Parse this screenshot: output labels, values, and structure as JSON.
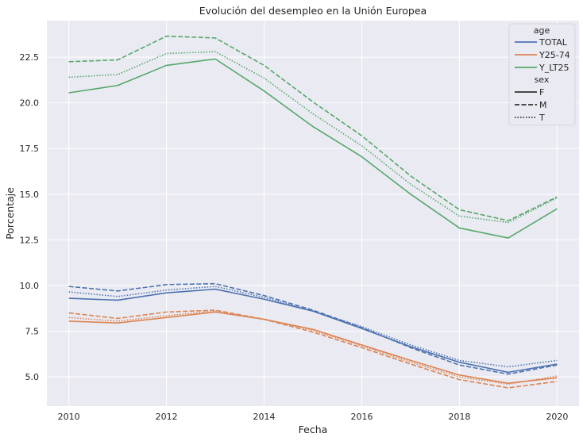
{
  "chart_data": {
    "type": "line",
    "title": "Evolución del desempleo en la Unión Europea",
    "xlabel": "Fecha",
    "ylabel": "Porcentaje",
    "xlim": [
      2009.55,
      2020.45
    ],
    "ylim": [
      3.4,
      24.5
    ],
    "xticks": [
      2010,
      2012,
      2014,
      2016,
      2018,
      2020
    ],
    "xtick_labels": [
      "2010",
      "2012",
      "2014",
      "2016",
      "2018",
      "2020"
    ],
    "yticks": [
      5.0,
      7.5,
      10.0,
      12.5,
      15.0,
      17.5,
      20.0,
      22.5
    ],
    "ytick_labels": [
      "5.0",
      "7.5",
      "10.0",
      "12.5",
      "15.0",
      "17.5",
      "20.0",
      "22.5"
    ],
    "grid": true,
    "legend_position": "top-right",
    "legend": {
      "hue_title": "age",
      "hue_entries": [
        {
          "label": "TOTAL",
          "color": "#4c72b0"
        },
        {
          "label": "Y25-74",
          "color": "#dd8452"
        },
        {
          "label": "Y_LT25",
          "color": "#55a868"
        }
      ],
      "style_title": "sex",
      "style_entries": [
        {
          "label": "F",
          "dash": "solid"
        },
        {
          "label": "M",
          "dash": "dashed"
        },
        {
          "label": "T",
          "dash": "dotted"
        }
      ]
    },
    "x": [
      2010,
      2011,
      2012,
      2013,
      2014,
      2015,
      2016,
      2017,
      2018,
      2019,
      2020
    ],
    "series": [
      {
        "age": "TOTAL",
        "sex": "F",
        "color": "#4c72b0",
        "dash": "solid",
        "values": [
          9.3,
          9.2,
          9.6,
          9.8,
          9.25,
          8.6,
          7.65,
          6.65,
          5.8,
          5.25,
          5.7
        ]
      },
      {
        "age": "TOTAL",
        "sex": "M",
        "color": "#4c72b0",
        "dash": "dashed",
        "values": [
          9.95,
          9.7,
          10.05,
          10.1,
          9.45,
          8.65,
          7.7,
          6.6,
          5.65,
          5.15,
          5.65
        ]
      },
      {
        "age": "TOTAL",
        "sex": "T",
        "color": "#4c72b0",
        "dash": "dotted",
        "values": [
          9.65,
          9.4,
          9.75,
          9.95,
          9.35,
          8.6,
          7.75,
          6.75,
          5.9,
          5.55,
          5.9
        ]
      },
      {
        "age": "Y25-74",
        "sex": "F",
        "color": "#dd8452",
        "dash": "solid",
        "values": [
          8.05,
          7.95,
          8.25,
          8.55,
          8.15,
          7.6,
          6.75,
          5.9,
          5.1,
          4.65,
          4.95
        ]
      },
      {
        "age": "Y25-74",
        "sex": "M",
        "color": "#dd8452",
        "dash": "dashed",
        "values": [
          8.5,
          8.2,
          8.55,
          8.65,
          8.15,
          7.45,
          6.6,
          5.7,
          4.85,
          4.4,
          4.75
        ]
      },
      {
        "age": "Y25-74",
        "sex": "T",
        "color": "#dd8452",
        "dash": "dotted",
        "values": [
          8.25,
          8.05,
          8.35,
          8.6,
          8.15,
          7.55,
          6.7,
          5.8,
          5.0,
          4.6,
          5.05
        ]
      },
      {
        "age": "Y_LT25",
        "sex": "F",
        "color": "#55a868",
        "dash": "solid",
        "values": [
          20.55,
          20.95,
          22.05,
          22.4,
          20.65,
          18.7,
          17.05,
          15.0,
          13.15,
          12.6,
          14.2
        ]
      },
      {
        "age": "Y_LT25",
        "sex": "M",
        "color": "#55a868",
        "dash": "dashed",
        "values": [
          22.25,
          22.35,
          23.65,
          23.55,
          22.05,
          20.05,
          18.2,
          16.0,
          14.15,
          13.55,
          14.85
        ]
      },
      {
        "age": "Y_LT25",
        "sex": "T",
        "color": "#55a868",
        "dash": "dotted",
        "values": [
          21.4,
          21.55,
          22.7,
          22.8,
          21.35,
          19.4,
          17.65,
          15.55,
          13.8,
          13.45,
          14.8
        ]
      }
    ]
  }
}
